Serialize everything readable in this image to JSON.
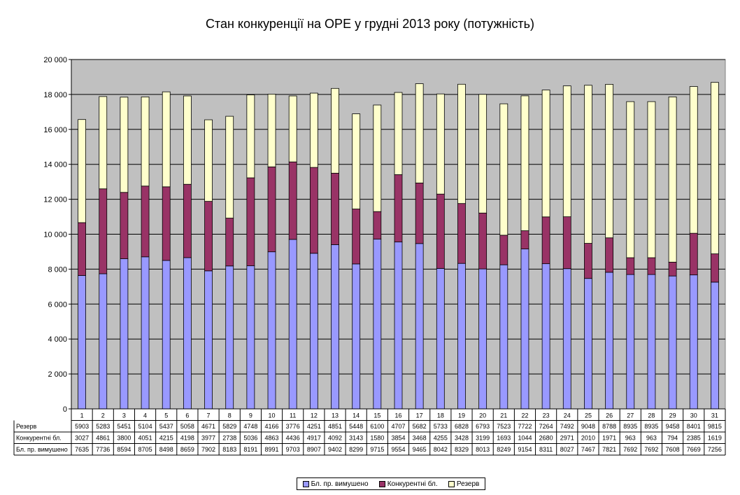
{
  "chart_data": {
    "type": "bar",
    "stacked": true,
    "title": "Стан конкуренції на ОРЕ  у грудні 2013 року (потужність)",
    "categories": [
      "1",
      "2",
      "3",
      "4",
      "5",
      "6",
      "7",
      "8",
      "9",
      "10",
      "11",
      "12",
      "13",
      "14",
      "15",
      "16",
      "17",
      "18",
      "19",
      "20",
      "21",
      "22",
      "23",
      "24",
      "25",
      "26",
      "27",
      "28",
      "29",
      "30",
      "31"
    ],
    "ylim": [
      0,
      20000
    ],
    "yticks": [
      "0",
      "2 000",
      "4 000",
      "6 000",
      "8 000",
      "10 000",
      "12 000",
      "14 000",
      "16 000",
      "18 000",
      "20 000"
    ],
    "grid": true,
    "legend_position": "bottom",
    "series": [
      {
        "name": "Бл. пр. вимушено",
        "color": "#9999ff",
        "values": [
          7635,
          7736,
          8594,
          8705,
          8498,
          8659,
          7902,
          8183,
          8191,
          8991,
          9703,
          8907,
          9402,
          8299,
          9715,
          9554,
          9465,
          8042,
          8329,
          8013,
          8249,
          9154,
          8311,
          8027,
          7467,
          7821,
          7692,
          7692,
          7608,
          7669,
          7256
        ]
      },
      {
        "name": "Конкурентні бл.",
        "color": "#993366",
        "values": [
          3027,
          4861,
          3800,
          4051,
          4215,
          4198,
          3977,
          2738,
          5036,
          4863,
          4436,
          4917,
          4092,
          3143,
          1580,
          3854,
          3468,
          4255,
          3428,
          3199,
          1693,
          1044,
          2680,
          2971,
          2010,
          1971,
          963,
          963,
          794,
          2385,
          1619
        ]
      },
      {
        "name": "Резерв",
        "color": "#ffffcc",
        "values": [
          5903,
          5283,
          5451,
          5104,
          5437,
          5058,
          4671,
          5829,
          4748,
          4166,
          3776,
          4251,
          4851,
          5448,
          6100,
          4707,
          5682,
          5733,
          6828,
          6793,
          7523,
          7722,
          7264,
          7492,
          9048,
          8788,
          8935,
          8935,
          9458,
          8401,
          9815
        ]
      }
    ],
    "table_rows": [
      {
        "label": "Резерв",
        "series_index": 2
      },
      {
        "label": "Конкурентні бл.",
        "series_index": 1
      },
      {
        "label": "Бл. пр. вимушено",
        "series_index": 0
      }
    ]
  },
  "colors": {
    "plot_bg": "#c0c0c0"
  }
}
